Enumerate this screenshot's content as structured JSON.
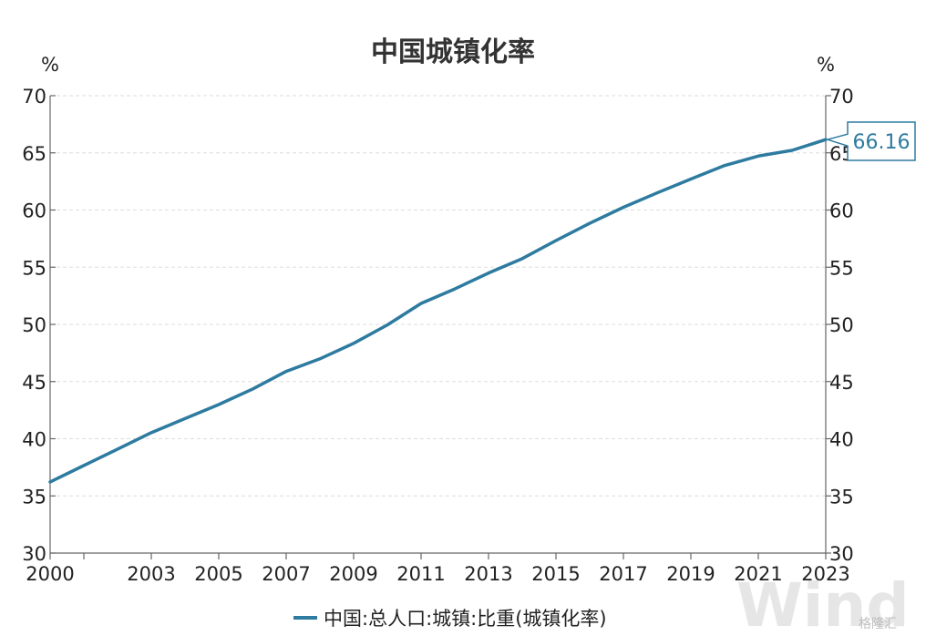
{
  "chart_data": {
    "type": "line",
    "title": "中国城镇化率",
    "ylabel_left": "%",
    "ylabel_right": "%",
    "ylim": [
      30,
      70
    ],
    "yticks": [
      30,
      35,
      40,
      45,
      50,
      55,
      60,
      65,
      70
    ],
    "xlim": [
      2000,
      2023
    ],
    "xticks": [
      2000,
      2003,
      2005,
      2007,
      2009,
      2011,
      2013,
      2015,
      2017,
      2019,
      2021,
      2023
    ],
    "grid": true,
    "legend_position": "bottom",
    "series": [
      {
        "name": "中国:总人口:城镇:比重(城镇化率)",
        "color": "#2e7ba0",
        "x": [
          2000,
          2001,
          2002,
          2003,
          2004,
          2005,
          2006,
          2007,
          2008,
          2009,
          2010,
          2011,
          2012,
          2013,
          2014,
          2015,
          2016,
          2017,
          2018,
          2019,
          2020,
          2021,
          2022,
          2023
        ],
        "values": [
          36.22,
          37.66,
          39.09,
          40.53,
          41.76,
          42.99,
          44.34,
          45.89,
          46.99,
          48.34,
          49.95,
          51.83,
          53.1,
          54.49,
          55.75,
          57.33,
          58.84,
          60.24,
          61.5,
          62.71,
          63.89,
          64.72,
          65.22,
          66.16
        ]
      }
    ],
    "annotation": {
      "label": "66.16",
      "x": 2023,
      "y": 66.16
    }
  },
  "watermark": {
    "brand": "Wind",
    "source": "格隆汇"
  }
}
